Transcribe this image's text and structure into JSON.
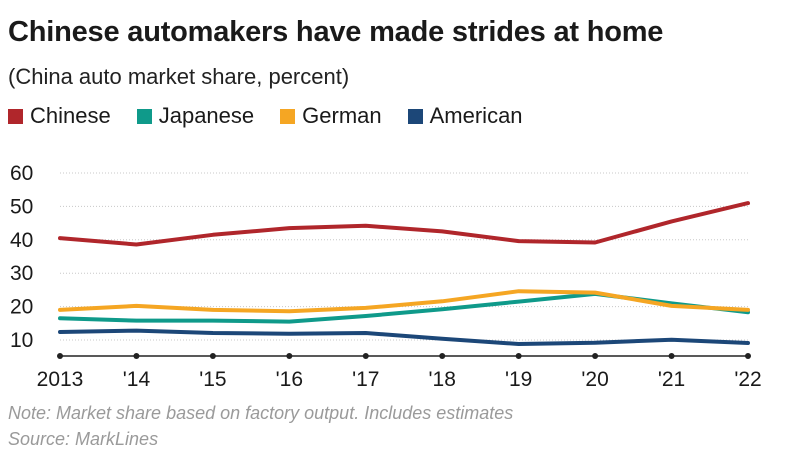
{
  "chart_data": {
    "type": "line",
    "title": "Chinese automakers have made strides at home",
    "subtitle": "(China auto market share, percent)",
    "x": [
      "2013",
      "'14",
      "'15",
      "'16",
      "'17",
      "'18",
      "'19",
      "'20",
      "'21",
      "'22"
    ],
    "yticks": [
      "60",
      "50",
      "40",
      "30",
      "20",
      "10"
    ],
    "ylim": [
      10,
      60
    ],
    "grid": true,
    "legend_position": "top-left",
    "series": [
      {
        "name": "Chinese",
        "color": "#b0262b",
        "values": [
          40.5,
          38.6,
          41.5,
          43.5,
          44.2,
          42.5,
          39.6,
          39.2,
          45.5,
          51.0
        ]
      },
      {
        "name": "Japanese",
        "color": "#0f9a8a",
        "values": [
          16.5,
          15.8,
          15.8,
          15.5,
          17.2,
          19.2,
          21.5,
          23.8,
          21.0,
          18.3
        ]
      },
      {
        "name": "German",
        "color": "#f5a623",
        "values": [
          19.0,
          20.2,
          19.0,
          18.6,
          19.6,
          21.6,
          24.6,
          24.2,
          20.2,
          19.0
        ]
      },
      {
        "name": "American",
        "color": "#1c4778",
        "values": [
          12.4,
          12.8,
          12.1,
          11.9,
          12.1,
          10.4,
          8.8,
          9.2,
          10.1,
          9.1
        ]
      }
    ],
    "notes": [
      "Note: Market share based on factory output. Includes estimates",
      "Source: MarkLines"
    ]
  }
}
